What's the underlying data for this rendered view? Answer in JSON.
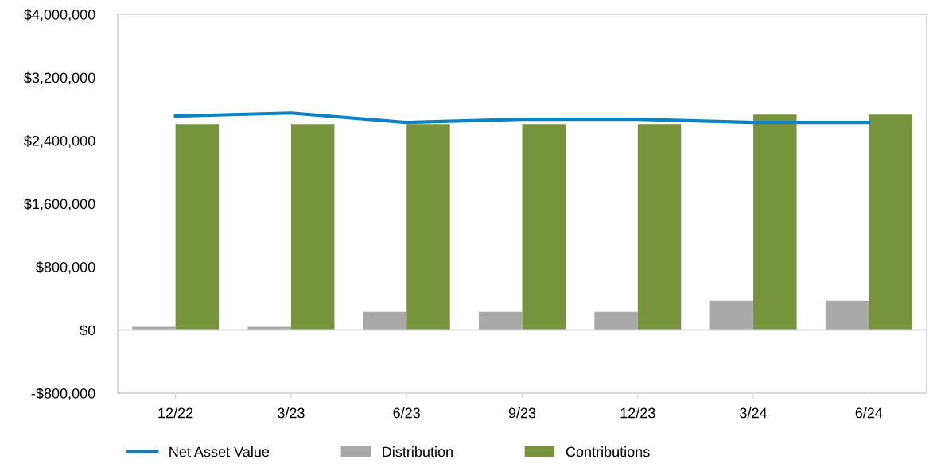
{
  "chart_data": {
    "type": "bar",
    "categories": [
      "12/22",
      "3/23",
      "6/23",
      "9/23",
      "12/23",
      "3/24",
      "6/24"
    ],
    "series": [
      {
        "name": "Net Asset Value",
        "type": "line",
        "color": "#0a82c4",
        "values": [
          2710000,
          2750000,
          2630000,
          2670000,
          2670000,
          2630000,
          2630000
        ]
      },
      {
        "name": "Distribution",
        "color": "#a9a9a9",
        "values": [
          40000,
          40000,
          230000,
          230000,
          230000,
          370000,
          370000
        ]
      },
      {
        "name": "Contributions",
        "color": "#77933c",
        "values": [
          2610000,
          2610000,
          2610000,
          2610000,
          2610000,
          2730000,
          2730000
        ]
      }
    ],
    "ylim": [
      -800000,
      4000000
    ],
    "yticks": [
      {
        "value": -800000,
        "label": "-$800,000"
      },
      {
        "value": 0,
        "label": "$0"
      },
      {
        "value": 800000,
        "label": "$800,000"
      },
      {
        "value": 1600000,
        "label": "$1,600,000"
      },
      {
        "value": 2400000,
        "label": "$2,400,000"
      },
      {
        "value": 3200000,
        "label": "$3,200,000"
      },
      {
        "value": 4000000,
        "label": "$4,000,000"
      }
    ],
    "ref_lines": [
      {
        "axis": "y",
        "value": 0,
        "color": "#d9d9d9"
      }
    ],
    "grid": false,
    "legend": "bottom"
  }
}
